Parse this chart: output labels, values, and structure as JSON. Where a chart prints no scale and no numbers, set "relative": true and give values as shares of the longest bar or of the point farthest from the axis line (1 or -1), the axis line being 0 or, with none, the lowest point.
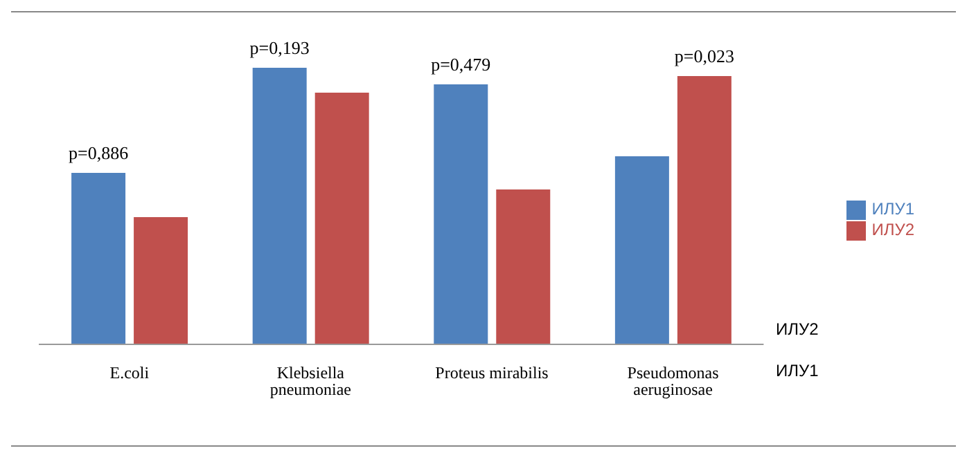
{
  "chart_data": {
    "type": "bar",
    "relative": true,
    "categories": [
      "E.coli",
      "Klebsiella pneumoniae",
      "Proteus mirabilis",
      "Pseudomonas aeruginosae"
    ],
    "series": [
      {
        "name": "ИЛУ1",
        "color": "#4f81bd",
        "values": [
          0.62,
          1,
          0.94,
          0.68
        ]
      },
      {
        "name": "ИЛУ2",
        "color": "#c0504d",
        "values": [
          0.46,
          0.91,
          0.56,
          0.97
        ]
      }
    ],
    "annotations": [
      "p=0,886",
      "p=0,193",
      "p=0,479",
      "p=0,023",
      "ИЛУ2",
      "ИЛУ1"
    ],
    "legend": "right"
  }
}
